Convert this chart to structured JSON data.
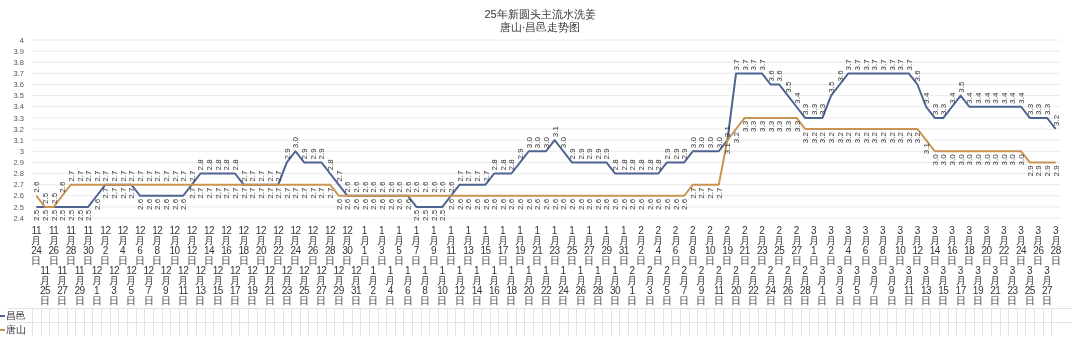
{
  "chart_data": {
    "type": "line",
    "title": "25年新圆头主流水洗姜",
    "subtitle": "唐山·昌邑走势图",
    "categories": [
      "11月24日",
      "11月25日",
      "11月26日",
      "11月27日",
      "11月28日",
      "11月29日",
      "11月30日",
      "12月1日",
      "12月2日",
      "12月3日",
      "12月4日",
      "12月5日",
      "12月6日",
      "12月7日",
      "12月8日",
      "12月9日",
      "12月10日",
      "12月11日",
      "12月12日",
      "12月13日",
      "12月14日",
      "12月15日",
      "12月16日",
      "12月17日",
      "12月18日",
      "12月19日",
      "12月20日",
      "12月21日",
      "12月22日",
      "12月23日",
      "12月24日",
      "12月25日",
      "12月26日",
      "12月27日",
      "12月28日",
      "12月29日",
      "12月30日",
      "12月31日",
      "1月1日",
      "1月2日",
      "1月3日",
      "1月4日",
      "1月5日",
      "1月6日",
      "1月7日",
      "1月8日",
      "1月9日",
      "1月10日",
      "1月11日",
      "1月12日",
      "1月13日",
      "1月14日",
      "1月15日",
      "1月16日",
      "1月17日",
      "1月18日",
      "1月19日",
      "1月20日",
      "1月21日",
      "1月22日",
      "1月23日",
      "1月24日",
      "1月25日",
      "1月26日",
      "1月27日",
      "1月28日",
      "1月29日",
      "1月30日",
      "1月31日",
      "2月1日",
      "2月2日",
      "2月3日",
      "2月4日",
      "2月5日",
      "2月6日",
      "2月7日",
      "2月8日",
      "2月9日",
      "2月10日",
      "2月11日",
      "2月19日",
      "2月20日",
      "2月21日",
      "2月22日",
      "2月23日",
      "2月24日",
      "2月25日",
      "2月26日",
      "2月27日",
      "2月28日",
      "3月1日",
      "3月1日",
      "3月2日",
      "3月3日",
      "3月4日",
      "3月5日",
      "3月6日",
      "3月7日",
      "3月8日",
      "3月9日",
      "3月10日",
      "3月11日",
      "3月12日",
      "3月13日",
      "3月14日",
      "3月15日",
      "3月16日",
      "3月17日",
      "3月18日",
      "3月19日",
      "3月20日",
      "3月21日",
      "3月22日",
      "3月23日",
      "3月24日",
      "3月25日",
      "3月26日",
      "3月27日",
      "3月28日"
    ],
    "series": [
      {
        "name": "昌邑",
        "color": "#4e6391",
        "value_labels": [
          "2.5",
          "2.5",
          "2.5",
          "2.5",
          "2.5",
          "2.5",
          "2.5",
          "2.6",
          "2.7",
          "2.7",
          "2.7",
          "2.7",
          "2.6",
          "2.6",
          "2.6",
          "2.6",
          "2.6",
          "2.6",
          "2.7",
          "2.8",
          "2.8",
          "2.8",
          "2.8",
          "2.8",
          "2.7",
          "2.7",
          "2.7",
          "2.7",
          "2.7",
          "2.9",
          "3.0",
          "2.9",
          "2.9",
          "2.9",
          "2.8",
          "2.7",
          "2.6",
          "2.6",
          "2.6",
          "2.6",
          "2.6",
          "2.6",
          "2.6",
          "2.6",
          "2.5",
          "2.5",
          "2.5",
          "2.5",
          "2.6",
          "2.7",
          "2.7",
          "2.7",
          "2.7",
          "2.8",
          "2.8",
          "2.8",
          "2.9",
          "3.0",
          "3.0",
          "3.0",
          "3.1",
          "3.0",
          "2.9",
          "2.9",
          "2.9",
          "2.9",
          "2.9",
          "2.8",
          "2.8",
          "2.8",
          "2.8",
          "2.8",
          "2.8",
          "2.9",
          "2.9",
          "2.9",
          "3.0",
          "3.0",
          "3.0",
          "3.0",
          "3.1",
          "3.7",
          "3.7",
          "3.7",
          "3.7",
          "3.6",
          "3.6",
          "3.5",
          "3.4",
          "3.3",
          "3.3",
          "3.3",
          "3.5",
          "3.6",
          "3.7",
          "3.7",
          "3.7",
          "3.7",
          "3.7",
          "3.7",
          "3.7",
          "3.7",
          "3.6",
          "3.4",
          "3.3",
          "3.3",
          "3.4",
          "3.5",
          "3.4",
          "3.4",
          "3.4",
          "3.4",
          "3.4",
          "3.4",
          "3.4",
          "3.3",
          "3.3",
          "3.3",
          "3.2"
        ],
        "values": [
          2.5,
          2.5,
          2.5,
          2.5,
          2.5,
          2.5,
          2.5,
          2.6,
          2.7,
          2.7,
          2.7,
          2.7,
          2.6,
          2.6,
          2.6,
          2.6,
          2.6,
          2.6,
          2.7,
          2.8,
          2.8,
          2.8,
          2.8,
          2.8,
          2.7,
          2.7,
          2.7,
          2.7,
          2.7,
          2.9,
          3.0,
          2.9,
          2.9,
          2.9,
          2.8,
          2.7,
          2.6,
          2.6,
          2.6,
          2.6,
          2.6,
          2.6,
          2.6,
          2.6,
          2.5,
          2.5,
          2.5,
          2.5,
          2.6,
          2.7,
          2.7,
          2.7,
          2.7,
          2.8,
          2.8,
          2.8,
          2.9,
          3.0,
          3.0,
          3.0,
          3.1,
          3.0,
          2.9,
          2.9,
          2.9,
          2.9,
          2.9,
          2.8,
          2.8,
          2.8,
          2.8,
          2.8,
          2.8,
          2.9,
          2.9,
          2.9,
          3.0,
          3.0,
          3.0,
          3.0,
          3.1,
          3.7,
          3.7,
          3.7,
          3.7,
          3.6,
          3.6,
          3.5,
          3.4,
          3.3,
          3.3,
          3.3,
          3.5,
          3.6,
          3.7,
          3.7,
          3.7,
          3.7,
          3.7,
          3.7,
          3.7,
          3.7,
          3.6,
          3.4,
          3.3,
          3.3,
          3.4,
          3.5,
          3.4,
          3.4,
          3.4,
          3.4,
          3.4,
          3.4,
          3.4,
          3.3,
          3.3,
          3.3,
          3.2
        ]
      },
      {
        "name": "唐山",
        "color": "#c99352",
        "value_labels": [
          "2.6",
          "2.5",
          "2.5",
          "2.6",
          "2.7",
          "2.7",
          "2.7",
          "2.7",
          "2.7",
          "2.7",
          "2.7",
          "2.7",
          "2.7",
          "2.7",
          "2.7",
          "2.7",
          "2.7",
          "2.7",
          "2.7",
          "2.7",
          "2.7",
          "2.7",
          "2.7",
          "2.7",
          "2.7",
          "2.7",
          "2.7",
          "2.7",
          "2.7",
          "2.7",
          "2.7",
          "2.7",
          "2.7",
          "2.7",
          "2.7",
          "2.6",
          "2.6",
          "2.6",
          "2.6",
          "2.6",
          "2.6",
          "2.6",
          "2.6",
          "2.6",
          "2.6",
          "2.6",
          "2.6",
          "2.6",
          "2.6",
          "2.6",
          "2.6",
          "2.6",
          "2.6",
          "2.6",
          "2.6",
          "2.6",
          "2.6",
          "2.6",
          "2.6",
          "2.6",
          "2.6",
          "2.6",
          "2.6",
          "2.6",
          "2.6",
          "2.6",
          "2.6",
          "2.6",
          "2.6",
          "2.6",
          "2.6",
          "2.6",
          "2.6",
          "2.6",
          "2.6",
          "2.6",
          "2.7",
          "2.7",
          "2.7",
          "2.7",
          "3.1",
          "3.2",
          "3.3",
          "3.3",
          "3.3",
          "3.3",
          "3.3",
          "3.3",
          "3.3",
          "3.2",
          "3.2",
          "3.2",
          "3.2",
          "3.2",
          "3.2",
          "3.2",
          "3.2",
          "3.2",
          "3.2",
          "3.2",
          "3.2",
          "3.2",
          "3.2",
          "3.1",
          "3.0",
          "3.0",
          "3.0",
          "3.0",
          "3.0",
          "3.0",
          "3.0",
          "3.0",
          "3.0",
          "3.0",
          "3.0",
          "2.9",
          "2.9",
          "2.9",
          "2.9"
        ],
        "values": [
          2.6,
          2.5,
          2.5,
          2.6,
          2.7,
          2.7,
          2.7,
          2.7,
          2.7,
          2.7,
          2.7,
          2.7,
          2.7,
          2.7,
          2.7,
          2.7,
          2.7,
          2.7,
          2.7,
          2.7,
          2.7,
          2.7,
          2.7,
          2.7,
          2.7,
          2.7,
          2.7,
          2.7,
          2.7,
          2.7,
          2.7,
          2.7,
          2.7,
          2.7,
          2.7,
          2.6,
          2.6,
          2.6,
          2.6,
          2.6,
          2.6,
          2.6,
          2.6,
          2.6,
          2.6,
          2.6,
          2.6,
          2.6,
          2.6,
          2.6,
          2.6,
          2.6,
          2.6,
          2.6,
          2.6,
          2.6,
          2.6,
          2.6,
          2.6,
          2.6,
          2.6,
          2.6,
          2.6,
          2.6,
          2.6,
          2.6,
          2.6,
          2.6,
          2.6,
          2.6,
          2.6,
          2.6,
          2.6,
          2.6,
          2.6,
          2.6,
          2.7,
          2.7,
          2.7,
          2.7,
          3.1,
          3.2,
          3.3,
          3.3,
          3.3,
          3.3,
          3.3,
          3.3,
          3.3,
          3.2,
          3.2,
          3.2,
          3.2,
          3.2,
          3.2,
          3.2,
          3.2,
          3.2,
          3.2,
          3.2,
          3.2,
          3.2,
          3.2,
          3.1,
          3.0,
          3.0,
          3.0,
          3.0,
          3.0,
          3.0,
          3.0,
          3.0,
          3.0,
          3.0,
          3.0,
          2.9,
          2.9,
          2.9,
          2.9
        ]
      }
    ],
    "ylim": [
      2.4,
      4
    ],
    "yticks": [
      2.4,
      2.5,
      2.6,
      2.7,
      2.8,
      2.9,
      3,
      3.1,
      3.2,
      3.3,
      3.4,
      3.5,
      3.6,
      3.7,
      3.8,
      3.9,
      4
    ],
    "grid": "y",
    "legend": "bottom",
    "marker": "none",
    "line_style": "solid"
  }
}
